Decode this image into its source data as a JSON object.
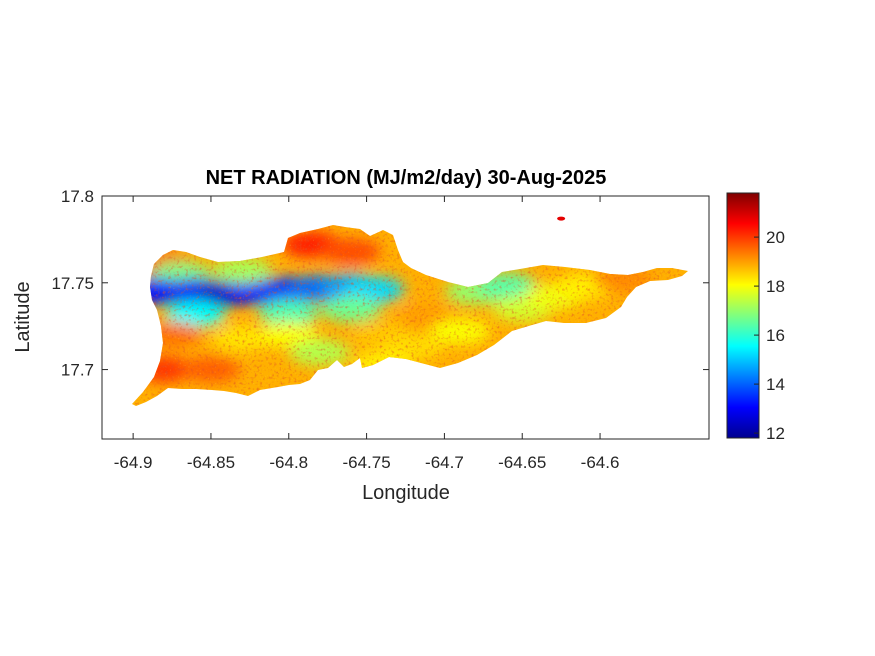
{
  "chart_data": {
    "type": "heatmap",
    "title": "NET RADIATION (MJ/m2/day) 30-Aug-2025",
    "xlabel": "Longitude",
    "ylabel": "Latitude",
    "xlim": [
      -64.92,
      -64.53
    ],
    "ylim": [
      17.66,
      17.8
    ],
    "xticks": [
      -64.9,
      -64.85,
      -64.8,
      -64.75,
      -64.7,
      -64.65,
      -64.6
    ],
    "xtick_labels": [
      "-64.9",
      "-64.85",
      "-64.8",
      "-64.75",
      "-64.7",
      "-64.65",
      "-64.6"
    ],
    "yticks": [
      17.7,
      17.75,
      17.8
    ],
    "ytick_labels": [
      "17.7",
      "17.75",
      "17.8"
    ],
    "grid": false,
    "colormap": "jet",
    "color_range": [
      11.8,
      21.8
    ],
    "colorbar_ticks": [
      12,
      14,
      16,
      18,
      20
    ],
    "colorbar_tick_labels": [
      "12",
      "14",
      "16",
      "18",
      "20"
    ],
    "regions": [
      {
        "lon": -64.88,
        "lat": 17.76,
        "value": 19.8
      },
      {
        "lon": -64.87,
        "lat": 17.755,
        "value": 16.8
      },
      {
        "lon": -64.885,
        "lat": 17.745,
        "value": 13.2
      },
      {
        "lon": -64.86,
        "lat": 17.745,
        "value": 13.0
      },
      {
        "lon": -64.84,
        "lat": 17.744,
        "value": 12.6
      },
      {
        "lon": -64.82,
        "lat": 17.745,
        "value": 13.2
      },
      {
        "lon": -64.8,
        "lat": 17.746,
        "value": 13.6
      },
      {
        "lon": -64.78,
        "lat": 17.747,
        "value": 14.1
      },
      {
        "lon": -64.76,
        "lat": 17.748,
        "value": 14.6
      },
      {
        "lon": -64.745,
        "lat": 17.746,
        "value": 15.2
      },
      {
        "lon": -64.86,
        "lat": 17.732,
        "value": 15.6
      },
      {
        "lon": -64.8,
        "lat": 17.733,
        "value": 16.3
      },
      {
        "lon": -64.76,
        "lat": 17.735,
        "value": 16.6
      },
      {
        "lon": -64.785,
        "lat": 17.772,
        "value": 20.3
      },
      {
        "lon": -64.76,
        "lat": 17.768,
        "value": 19.8
      },
      {
        "lon": -64.83,
        "lat": 17.757,
        "value": 17.2
      },
      {
        "lon": -64.875,
        "lat": 17.72,
        "value": 19.4
      },
      {
        "lon": -64.88,
        "lat": 17.7,
        "value": 20.0
      },
      {
        "lon": -64.85,
        "lat": 17.7,
        "value": 19.6
      },
      {
        "lon": -64.83,
        "lat": 17.718,
        "value": 18.3
      },
      {
        "lon": -64.8,
        "lat": 17.72,
        "value": 18.0
      },
      {
        "lon": -64.78,
        "lat": 17.71,
        "value": 17.3
      },
      {
        "lon": -64.74,
        "lat": 17.72,
        "value": 18.6
      },
      {
        "lon": -64.71,
        "lat": 17.73,
        "value": 19.0
      },
      {
        "lon": -64.72,
        "lat": 17.713,
        "value": 18.4
      },
      {
        "lon": -64.69,
        "lat": 17.722,
        "value": 18.0
      },
      {
        "lon": -64.68,
        "lat": 17.745,
        "value": 17.0
      },
      {
        "lon": -64.66,
        "lat": 17.748,
        "value": 16.4
      },
      {
        "lon": -64.65,
        "lat": 17.735,
        "value": 17.6
      },
      {
        "lon": -64.63,
        "lat": 17.742,
        "value": 17.9
      },
      {
        "lon": -64.61,
        "lat": 17.748,
        "value": 18.2
      },
      {
        "lon": -64.585,
        "lat": 17.752,
        "value": 19.2
      },
      {
        "lon": -64.74,
        "lat": 17.703,
        "value": 18.2
      },
      {
        "lon": -64.625,
        "lat": 17.787,
        "value": 20.8
      }
    ]
  }
}
